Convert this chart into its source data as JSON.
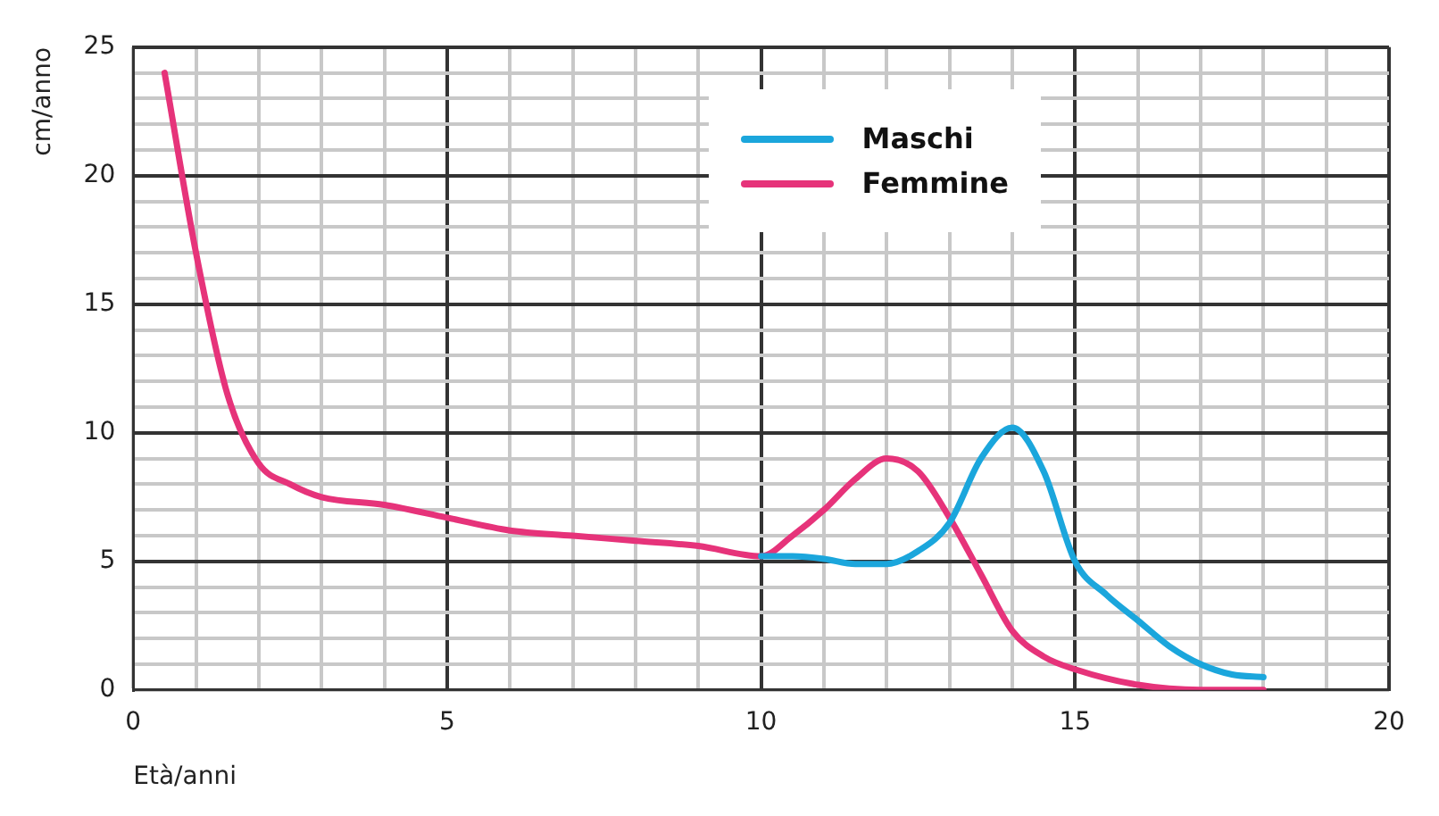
{
  "chart_data": {
    "type": "line",
    "xlabel": "Età/anni",
    "ylabel": "cm/anno",
    "xlim": [
      0,
      20
    ],
    "ylim": [
      0,
      25
    ],
    "xticks": [
      0,
      {
        "value": 1,
        "label": null
      },
      {
        "value": 2,
        "label": null
      },
      {
        "value": 3,
        "label": null
      },
      {
        "value": 4,
        "label": null
      },
      5,
      {
        "value": 6,
        "label": null
      },
      {
        "value": 7,
        "label": null
      },
      {
        "value": 8,
        "label": null
      },
      {
        "value": 9,
        "label": null
      },
      10,
      {
        "value": 11,
        "label": null
      },
      {
        "value": 12,
        "label": null
      },
      {
        "value": 13,
        "label": null
      },
      {
        "value": 14,
        "label": null
      },
      15,
      {
        "value": 16,
        "label": null
      },
      {
        "value": 17,
        "label": null
      },
      {
        "value": 18,
        "label": null
      },
      {
        "value": 19,
        "label": null
      },
      20
    ],
    "yticks": [
      0,
      {
        "value": 1,
        "label": null
      },
      {
        "value": 2,
        "label": null
      },
      {
        "value": 3,
        "label": null
      },
      {
        "value": 4,
        "label": null
      },
      5,
      {
        "value": 6,
        "label": null
      },
      {
        "value": 7,
        "label": null
      },
      {
        "value": 8,
        "label": null
      },
      {
        "value": 9,
        "label": null
      },
      10,
      {
        "value": 11,
        "label": null
      },
      {
        "value": 12,
        "label": null
      },
      {
        "value": 13,
        "label": null
      },
      {
        "value": 14,
        "label": null
      },
      15,
      {
        "value": 16,
        "label": null
      },
      {
        "value": 17,
        "label": null
      },
      {
        "value": 18,
        "label": null
      },
      {
        "value": 19,
        "label": null
      },
      20,
      {
        "value": 21,
        "label": null
      },
      {
        "value": 22,
        "label": null
      },
      {
        "value": 23,
        "label": null
      },
      {
        "value": 24,
        "label": null
      },
      25
    ],
    "grid": true,
    "legend": "top right",
    "marker": "none",
    "line_style": "solid",
    "series": [
      {
        "name": "Maschi",
        "color": "#1ba6dc",
        "x": [
          10,
          10.5,
          11,
          11.5,
          12,
          12.5,
          13,
          13.5,
          14,
          14.5,
          15,
          15.5,
          16,
          16.5,
          17,
          17.5,
          18
        ],
        "values": [
          5.2,
          5.2,
          5.1,
          4.9,
          4.9,
          5.4,
          6.5,
          9,
          10.2,
          8.5,
          5,
          3.7,
          2.7,
          1.7,
          1,
          0.6,
          0.5
        ]
      },
      {
        "name": "Femmine",
        "color": "#e6337a",
        "x": [
          0.5,
          1,
          1.5,
          2,
          2.5,
          3,
          4,
          5,
          6,
          7,
          8,
          9,
          10,
          10.5,
          11,
          11.5,
          12,
          12.5,
          13,
          13.5,
          14,
          14.5,
          15,
          16,
          17,
          18
        ],
        "values": [
          24,
          17,
          11.5,
          8.8,
          8,
          7.5,
          7.2,
          6.7,
          6.2,
          6,
          5.8,
          5.6,
          5.2,
          6,
          7,
          8.2,
          9,
          8.5,
          6.7,
          4.5,
          2.3,
          1.3,
          0.8,
          0.2,
          0,
          0
        ]
      }
    ]
  }
}
